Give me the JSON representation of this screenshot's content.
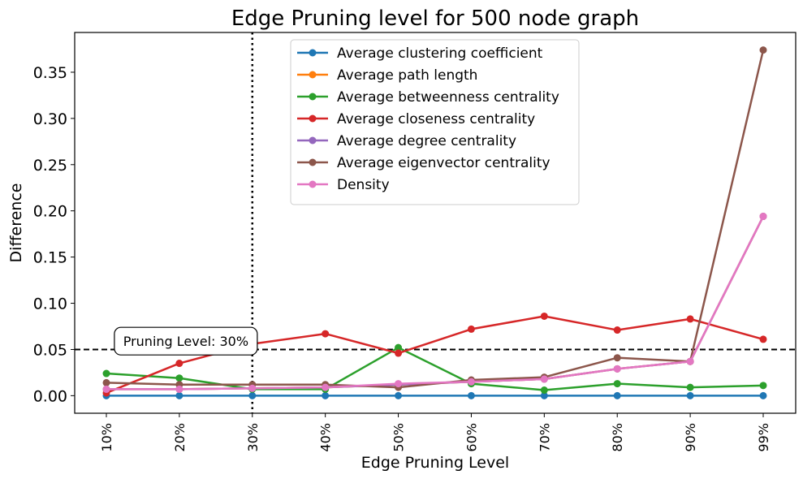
{
  "chart_data": {
    "type": "line",
    "title": "Edge Pruning level for 500 node graph",
    "xlabel": "Edge Pruning Level",
    "ylabel": "Difference",
    "categories": [
      "10%",
      "20%",
      "30%",
      "40%",
      "50%",
      "60%",
      "70%",
      "80%",
      "90%",
      "99%"
    ],
    "ylim": [
      -0.019,
      0.393
    ],
    "yticks": [
      0.0,
      0.05,
      0.1,
      0.15,
      0.2,
      0.25,
      0.3,
      0.35
    ],
    "ytick_labels": [
      "0.00",
      "0.05",
      "0.10",
      "0.15",
      "0.20",
      "0.25",
      "0.30",
      "0.35"
    ],
    "grid": false,
    "legend_position": "top-center",
    "series": [
      {
        "name": "Average clustering coefficient",
        "color": "#1f77b4",
        "values": [
          0.0,
          0.0,
          0.0,
          0.0,
          0.0,
          0.0,
          0.0,
          0.0,
          0.0,
          0.0
        ]
      },
      {
        "name": "Average path length",
        "color": "#ff7f0e",
        "values": [
          0.007,
          0.007,
          0.008,
          0.009,
          0.012,
          0.015,
          0.018,
          0.029,
          0.037,
          0.194
        ]
      },
      {
        "name": "Average betweenness centrality",
        "color": "#2ca02c",
        "values": [
          0.024,
          0.019,
          0.007,
          0.007,
          0.052,
          0.013,
          0.006,
          0.013,
          0.009,
          0.011
        ]
      },
      {
        "name": "Average closeness centrality",
        "color": "#d62728",
        "values": [
          0.003,
          0.035,
          0.056,
          0.067,
          0.046,
          0.072,
          0.086,
          0.071,
          0.083,
          0.061
        ]
      },
      {
        "name": "Average degree centrality",
        "color": "#9467bd",
        "values": [
          0.007,
          0.007,
          0.008,
          0.009,
          0.012,
          0.015,
          0.018,
          0.029,
          0.037,
          0.194
        ]
      },
      {
        "name": "Average eigenvector centrality",
        "color": "#8c564b",
        "values": [
          0.014,
          0.012,
          0.012,
          0.012,
          0.009,
          0.017,
          0.02,
          0.041,
          0.037,
          0.374
        ]
      },
      {
        "name": "Density",
        "color": "#e377c2",
        "values": [
          0.007,
          0.007,
          0.008,
          0.009,
          0.013,
          0.015,
          0.018,
          0.029,
          0.037,
          0.194
        ]
      }
    ],
    "reference_lines": [
      {
        "orientation": "horizontal",
        "value": 0.05,
        "style": "dashed",
        "color": "#000000"
      },
      {
        "orientation": "vertical",
        "category": "30%",
        "style": "dotted",
        "color": "#000000"
      }
    ],
    "annotation": {
      "text": "Pruning Level: 30%",
      "x_category": "20%",
      "y": 0.059
    }
  }
}
